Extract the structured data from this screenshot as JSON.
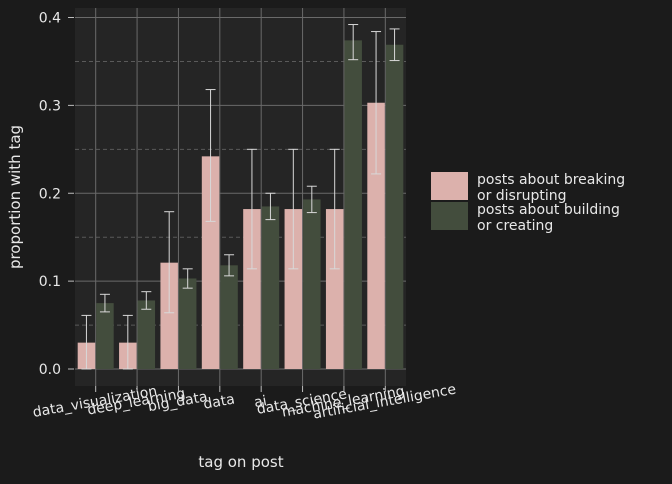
{
  "chart_data": {
    "type": "bar",
    "xlabel": "tag on post",
    "ylabel": "proportion with tag",
    "ylim": [
      -0.018,
      0.41
    ],
    "yticks": [
      "0.0",
      "0.1",
      "0.2",
      "0.3",
      "0.4"
    ],
    "categories": [
      "data_visualization",
      "deep_learning",
      "big_data",
      "data",
      "ai",
      "data_science",
      "machine_learning",
      "artificial_intelligence"
    ],
    "grid": true,
    "legend_position": "right",
    "series": [
      {
        "name": "posts about breaking or disrupting",
        "name_lines": [
          "posts about breaking",
          "or disrupting"
        ],
        "color": "#dcb1ac",
        "values": [
          0.03,
          0.03,
          0.121,
          0.242,
          0.182,
          0.182,
          0.182,
          0.303
        ],
        "err_low": [
          0.0,
          0.0,
          0.064,
          0.168,
          0.114,
          0.114,
          0.114,
          0.222
        ],
        "err_high": [
          0.061,
          0.061,
          0.179,
          0.318,
          0.25,
          0.25,
          0.25,
          0.384
        ]
      },
      {
        "name": "posts about building or creating",
        "name_lines": [
          "posts about building",
          "or creating"
        ],
        "color": "#434d3d",
        "values": [
          0.075,
          0.078,
          0.103,
          0.118,
          0.185,
          0.193,
          0.374,
          0.369
        ],
        "err_low": [
          0.065,
          0.068,
          0.092,
          0.106,
          0.17,
          0.178,
          0.352,
          0.351
        ],
        "err_high": [
          0.085,
          0.088,
          0.114,
          0.13,
          0.2,
          0.208,
          0.392,
          0.387
        ]
      }
    ]
  }
}
